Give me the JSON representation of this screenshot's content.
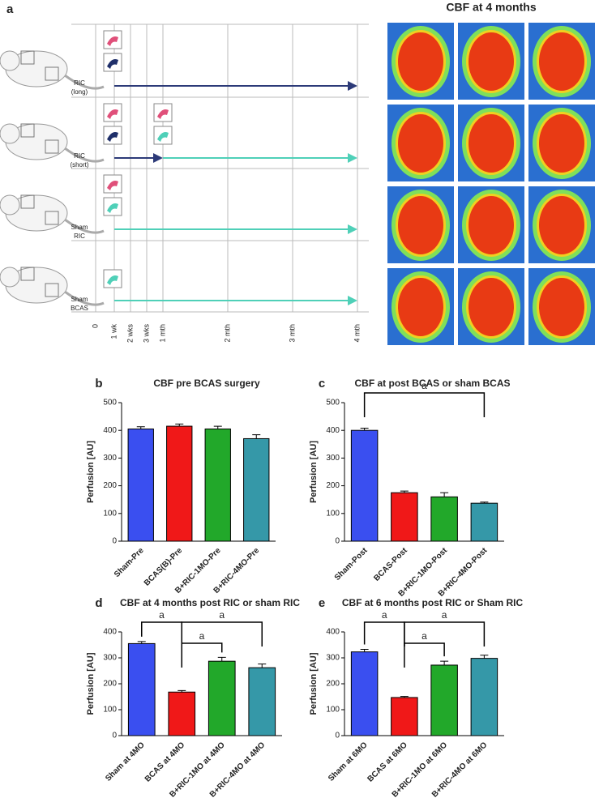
{
  "panel_a": {
    "panel": "a",
    "title": "CBF at 4 months",
    "groups": [
      [
        "RIC",
        "(long)"
      ],
      [
        "RIC",
        "(short)"
      ],
      [
        "Sham",
        "RIC"
      ],
      [
        "Sham",
        "BCAS"
      ]
    ],
    "timeline": [
      "0",
      "1 wk",
      "2 wks",
      "3 wks",
      "1 mth",
      "2 mth",
      "3 mth",
      "4 mth"
    ]
  },
  "chart_data": [
    {
      "type": "bar",
      "panel": "b",
      "title": "CBF pre BCAS surgery",
      "y_label": "Perfusion [AU]",
      "categories": [
        "Sham-Pre",
        "BCAS(B)-Pre",
        "B+RIC-1MO-Pre",
        "B+RIC-4MO-Pre"
      ],
      "values": [
        405,
        415,
        405,
        370
      ],
      "errors": [
        8,
        8,
        10,
        14
      ],
      "colors": [
        "#3a4ff0",
        "#f01818",
        "#22a82a",
        "#3598a8"
      ],
      "ylim": [
        0,
        500
      ],
      "yticks": [
        0,
        100,
        200,
        300,
        400,
        500
      ],
      "brackets": []
    },
    {
      "type": "bar",
      "panel": "c",
      "title": "CBF at post BCAS or sham BCAS",
      "y_label": "Perfusion [AU]",
      "categories": [
        "Sham-Post",
        "BCAS-Post",
        "B+RIC-1MO-Post",
        "B+RIC-4MO-Post"
      ],
      "values": [
        400,
        175,
        160,
        137
      ],
      "errors": [
        8,
        6,
        15,
        4
      ],
      "colors": [
        "#3a4ff0",
        "#f01818",
        "#22a82a",
        "#3598a8"
      ],
      "ylim": [
        0,
        500
      ],
      "yticks": [
        0,
        100,
        200,
        300,
        400,
        500
      ],
      "brackets": [
        {
          "label": "a",
          "bars": [
            0,
            3
          ]
        }
      ]
    },
    {
      "type": "bar",
      "panel": "d",
      "title": "CBF at 4 months post RIC or sham RIC",
      "y_label": "Perfusion [AU]",
      "categories": [
        "Sham at 4MO",
        "BCAS at 4MO",
        "B+RIC-1MO at 4MO",
        "B+RIC-4MO at 4MO"
      ],
      "values": [
        355,
        168,
        287,
        262
      ],
      "errors": [
        8,
        6,
        15,
        14
      ],
      "colors": [
        "#3a4ff0",
        "#f01818",
        "#22a82a",
        "#3598a8"
      ],
      "ylim": [
        0,
        400
      ],
      "yticks": [
        0,
        100,
        200,
        300,
        400
      ],
      "brackets": [
        {
          "label": "a",
          "bars": [
            0,
            1
          ]
        },
        {
          "label": "a",
          "bars": [
            1,
            2
          ]
        },
        {
          "label": "a",
          "bars": [
            1,
            3
          ]
        }
      ]
    },
    {
      "type": "bar",
      "panel": "e",
      "title": "CBF at 6 months post RIC or Sham RIC",
      "y_label": "Perfusion [AU]",
      "categories": [
        "Sham at 6MO",
        "BCAS at 6MO",
        "B+RIC-1MO at 6MO",
        "B+RIC-4MO at 6MO"
      ],
      "values": [
        323,
        147,
        272,
        298
      ],
      "errors": [
        10,
        4,
        15,
        12
      ],
      "colors": [
        "#3a4ff0",
        "#f01818",
        "#22a82a",
        "#3598a8"
      ],
      "ylim": [
        0,
        400
      ],
      "yticks": [
        0,
        100,
        200,
        300,
        400
      ],
      "brackets": [
        {
          "label": "a",
          "bars": [
            0,
            1
          ]
        },
        {
          "label": "a",
          "bars": [
            1,
            2
          ]
        },
        {
          "label": "a",
          "bars": [
            1,
            3
          ]
        }
      ]
    }
  ]
}
